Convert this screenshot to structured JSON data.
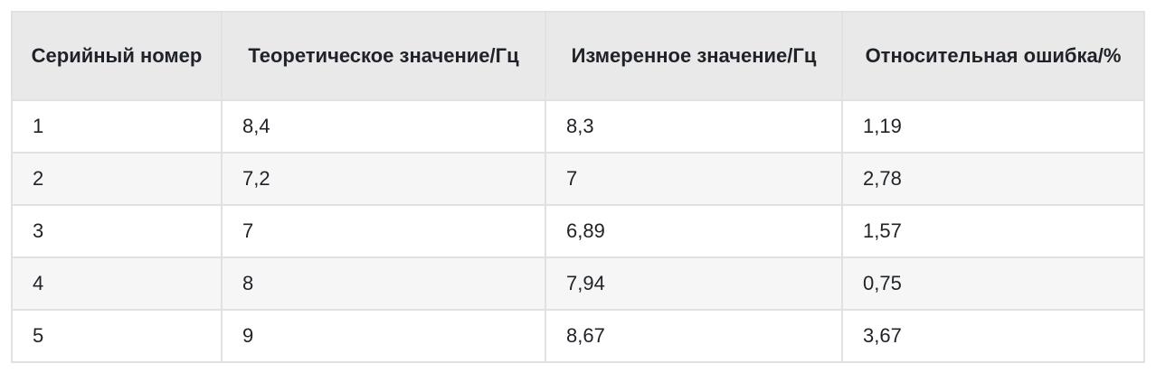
{
  "table": {
    "headers": [
      "Серийный номер",
      "Теоретическое значение/Гц",
      "Измеренное значение/Гц",
      "Относительная ошибка/%"
    ],
    "rows": [
      [
        "1",
        "8,4",
        "8,3",
        "1,19"
      ],
      [
        "2",
        "7,2",
        "7",
        "2,78"
      ],
      [
        "3",
        "7",
        "6,89",
        "1,57"
      ],
      [
        "4",
        "8",
        "7,94",
        "0,75"
      ],
      [
        "5",
        "9",
        "8,67",
        "3,67"
      ]
    ]
  }
}
